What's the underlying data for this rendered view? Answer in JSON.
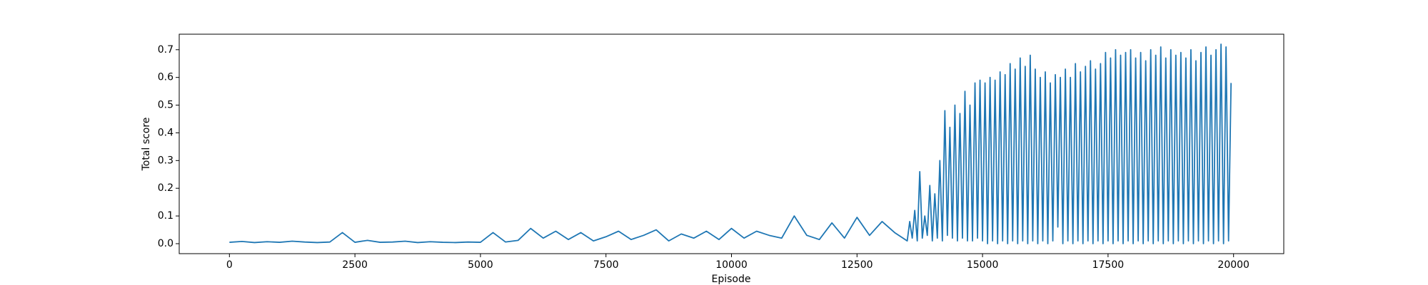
{
  "chart_data": {
    "type": "line",
    "xlabel": "Episode",
    "ylabel": "Total score",
    "xlim": [
      -1000,
      21000
    ],
    "ylim": [
      -0.036,
      0.756
    ],
    "xticks": [
      0,
      2500,
      5000,
      7500,
      10000,
      12500,
      15000,
      17500,
      20000
    ],
    "yticks": [
      {
        "value": 0,
        "label": "0.0"
      },
      0.1,
      0.2,
      0.3,
      0.4,
      0.5,
      0.6,
      0.7
    ],
    "grid": false,
    "series": [
      {
        "color": "#1f77b4",
        "x": [
          0,
          250,
          500,
          750,
          1000,
          1250,
          1500,
          1750,
          2000,
          2250,
          2500,
          2750,
          3000,
          3250,
          3500,
          3750,
          4000,
          4250,
          4500,
          4750,
          5000,
          5250,
          5500,
          5750,
          6000,
          6250,
          6500,
          6750,
          7000,
          7250,
          7500,
          7750,
          8000,
          8250,
          8500,
          8750,
          9000,
          9250,
          9500,
          9750,
          10000,
          10250,
          10500,
          10750,
          11000,
          11250,
          11500,
          11750,
          12000,
          12250,
          12500,
          12750,
          13000,
          13250,
          13500,
          13550,
          13600,
          13650,
          13700,
          13750,
          13800,
          13850,
          13900,
          13950,
          14000,
          14050,
          14100,
          14150,
          14200,
          14250,
          14300,
          14350,
          14400,
          14450,
          14500,
          14550,
          14600,
          14650,
          14700,
          14750,
          14800,
          14850,
          14900,
          14950,
          15000,
          15050,
          15100,
          15150,
          15200,
          15250,
          15300,
          15350,
          15400,
          15450,
          15500,
          15550,
          15600,
          15650,
          15700,
          15750,
          15800,
          15850,
          15900,
          15950,
          16000,
          16050,
          16100,
          16150,
          16200,
          16250,
          16300,
          16350,
          16400,
          16450,
          16500,
          16550,
          16600,
          16650,
          16700,
          16750,
          16800,
          16850,
          16900,
          16950,
          17000,
          17050,
          17100,
          17150,
          17200,
          17250,
          17300,
          17350,
          17400,
          17450,
          17500,
          17550,
          17600,
          17650,
          17700,
          17750,
          17800,
          17850,
          17900,
          17950,
          18000,
          18050,
          18100,
          18150,
          18200,
          18250,
          18300,
          18350,
          18400,
          18450,
          18500,
          18550,
          18600,
          18650,
          18700,
          18750,
          18800,
          18850,
          18900,
          18950,
          19000,
          19050,
          19100,
          19150,
          19200,
          19250,
          19300,
          19350,
          19400,
          19450,
          19500,
          19550,
          19600,
          19650,
          19700,
          19750,
          19800,
          19850,
          19900,
          19950
        ],
        "values": [
          0.005,
          0.008,
          0.004,
          0.007,
          0.005,
          0.009,
          0.006,
          0.004,
          0.006,
          0.04,
          0.005,
          0.012,
          0.005,
          0.006,
          0.009,
          0.004,
          0.007,
          0.005,
          0.004,
          0.006,
          0.005,
          0.04,
          0.006,
          0.012,
          0.055,
          0.02,
          0.045,
          0.015,
          0.04,
          0.01,
          0.025,
          0.045,
          0.015,
          0.03,
          0.05,
          0.01,
          0.035,
          0.02,
          0.045,
          0.015,
          0.055,
          0.02,
          0.045,
          0.03,
          0.02,
          0.1,
          0.03,
          0.015,
          0.075,
          0.02,
          0.095,
          0.03,
          0.08,
          0.04,
          0.01,
          0.08,
          0.02,
          0.12,
          0.01,
          0.26,
          0.02,
          0.1,
          0.03,
          0.21,
          0.01,
          0.18,
          0.02,
          0.3,
          0.01,
          0.48,
          0.03,
          0.42,
          0.02,
          0.5,
          0.01,
          0.47,
          0.02,
          0.55,
          0.01,
          0.5,
          0.01,
          0.58,
          0.02,
          0.59,
          0.01,
          0.58,
          0.0,
          0.6,
          0.01,
          0.59,
          0.0,
          0.62,
          0.01,
          0.61,
          0.0,
          0.65,
          0.01,
          0.63,
          0.0,
          0.67,
          0.01,
          0.64,
          0.0,
          0.68,
          0.01,
          0.63,
          0.0,
          0.6,
          0.01,
          0.62,
          0.0,
          0.58,
          0.01,
          0.61,
          0.06,
          0.6,
          0.0,
          0.63,
          0.01,
          0.6,
          0.0,
          0.65,
          0.01,
          0.62,
          0.0,
          0.64,
          0.01,
          0.66,
          0.0,
          0.63,
          0.01,
          0.65,
          0.0,
          0.69,
          0.01,
          0.67,
          0.0,
          0.7,
          0.01,
          0.68,
          0.0,
          0.69,
          0.01,
          0.7,
          0.0,
          0.67,
          0.01,
          0.69,
          0.0,
          0.66,
          0.01,
          0.7,
          0.0,
          0.68,
          0.01,
          0.71,
          0.0,
          0.67,
          0.01,
          0.7,
          0.0,
          0.68,
          0.01,
          0.69,
          0.0,
          0.67,
          0.01,
          0.7,
          0.0,
          0.66,
          0.01,
          0.69,
          0.0,
          0.71,
          0.01,
          0.68,
          0.0,
          0.7,
          0.01,
          0.72,
          0.0,
          0.71,
          0.01,
          0.58
        ]
      }
    ]
  }
}
